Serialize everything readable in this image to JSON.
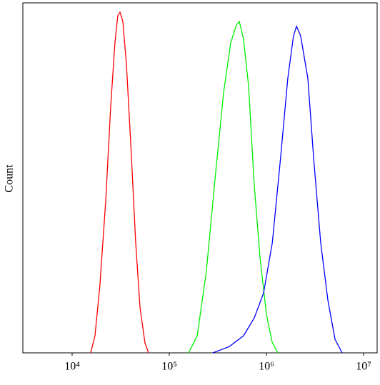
{
  "chart_data": {
    "type": "line",
    "y_label": "Count",
    "x_scale": "log",
    "xlim": [
      3110,
      13800000
    ],
    "xticks": [
      {
        "value": 10000,
        "label": "10⁴"
      },
      {
        "value": 100000,
        "label": "10⁵"
      },
      {
        "value": 1000000,
        "label": "10⁶"
      },
      {
        "value": 10000000,
        "label": "10⁷"
      }
    ],
    "ylim": [
      0,
      100
    ],
    "series": [
      {
        "color": "#ff0000",
        "x": [
          15500,
          17200,
          19300,
          22200,
          24900,
          27600,
          29500,
          31100,
          33300,
          36200,
          40100,
          45100,
          50000,
          56200,
          61200
        ],
        "values": [
          0,
          4.9,
          19.2,
          43.7,
          70.2,
          88.6,
          96.3,
          97.3,
          94.7,
          82.4,
          60,
          31.4,
          13.1,
          2.9,
          0
        ]
      },
      {
        "color": "#00ee00",
        "x": [
          158000,
          194000,
          241000,
          296000,
          362000,
          429000,
          491000,
          526000,
          582000,
          655000,
          750000,
          859000,
          1000000,
          1150000,
          1310000
        ],
        "values": [
          0,
          4.9,
          23.3,
          49.8,
          74.3,
          88.6,
          93.7,
          94.7,
          89.6,
          76.3,
          47.8,
          27.3,
          11,
          2.9,
          0
        ]
      },
      {
        "color": "#0000ff",
        "x": [
          281000,
          415000,
          582000,
          750000,
          935000,
          1150000,
          1400000,
          1660000,
          1900000,
          2040000,
          2250000,
          2670000,
          3060000,
          3620000,
          4290000,
          5080000,
          6020000
        ],
        "values": [
          0,
          1.8,
          4.9,
          10,
          17.1,
          31.4,
          55.9,
          78.4,
          90.6,
          93.3,
          90.6,
          78.4,
          55.9,
          31.4,
          15.1,
          3.9,
          0
        ]
      }
    ]
  }
}
